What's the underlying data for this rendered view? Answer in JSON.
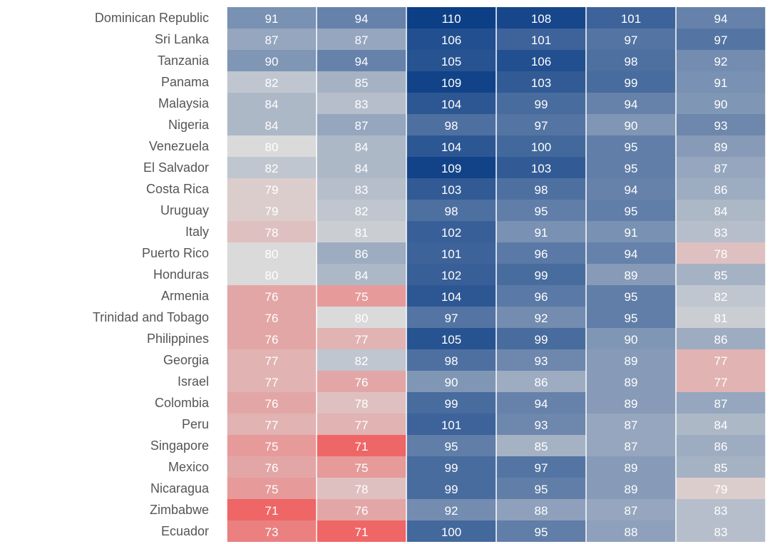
{
  "chart_data": {
    "type": "heatmap",
    "title": "",
    "columns": [
      "",
      "",
      "",
      "",
      "",
      ""
    ],
    "rows": [
      "Dominican Republic",
      "Sri Lanka",
      "Tanzania",
      "Panama",
      "Malaysia",
      "Nigeria",
      "Venezuela",
      "El Salvador",
      "Costa Rica",
      "Uruguay",
      "Italy",
      "Puerto Rico",
      "Honduras",
      "Armenia",
      "Trinidad and Tobago",
      "Philippines",
      "Georgia",
      "Israel",
      "Colombia",
      "Peru",
      "Singapore",
      "Mexico",
      "Nicaragua",
      "Zimbabwe",
      "Ecuador"
    ],
    "values": [
      [
        91,
        94,
        110,
        108,
        101,
        94
      ],
      [
        87,
        87,
        106,
        101,
        97,
        97
      ],
      [
        90,
        94,
        105,
        106,
        98,
        92
      ],
      [
        82,
        85,
        109,
        103,
        99,
        91
      ],
      [
        84,
        83,
        104,
        99,
        94,
        90
      ],
      [
        84,
        87,
        98,
        97,
        90,
        93
      ],
      [
        80,
        84,
        104,
        100,
        95,
        89
      ],
      [
        82,
        84,
        109,
        103,
        95,
        87
      ],
      [
        79,
        83,
        103,
        98,
        94,
        86
      ],
      [
        79,
        82,
        98,
        95,
        95,
        84
      ],
      [
        78,
        81,
        102,
        91,
        91,
        83
      ],
      [
        80,
        86,
        101,
        96,
        94,
        78
      ],
      [
        80,
        84,
        102,
        99,
        89,
        85
      ],
      [
        76,
        75,
        104,
        96,
        95,
        82
      ],
      [
        76,
        80,
        97,
        92,
        95,
        81
      ],
      [
        76,
        77,
        105,
        99,
        90,
        86
      ],
      [
        77,
        82,
        98,
        93,
        89,
        77
      ],
      [
        77,
        76,
        90,
        86,
        89,
        77
      ],
      [
        76,
        78,
        99,
        94,
        89,
        87
      ],
      [
        77,
        77,
        101,
        93,
        87,
        84
      ],
      [
        75,
        71,
        95,
        85,
        87,
        86
      ],
      [
        76,
        75,
        99,
        97,
        89,
        85
      ],
      [
        75,
        78,
        99,
        95,
        89,
        79
      ],
      [
        71,
        76,
        92,
        88,
        87,
        83
      ],
      [
        73,
        71,
        100,
        95,
        88,
        83
      ]
    ],
    "color_scale": {
      "low": "#ef6666",
      "mid": "#dadada",
      "high": "#0d3f86",
      "low_value": 71,
      "mid_value": 80,
      "high_value": 110
    },
    "grid": false,
    "legend": "none"
  }
}
